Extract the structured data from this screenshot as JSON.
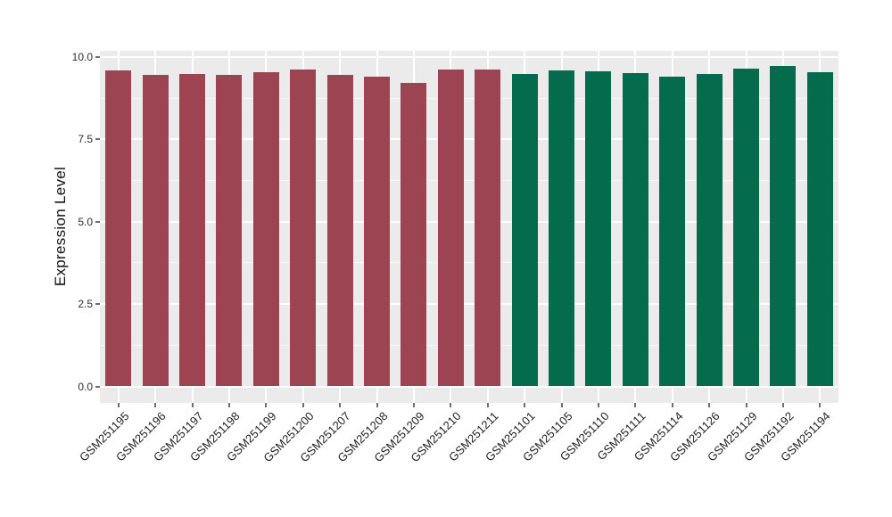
{
  "figure": {
    "background": "#ffffff",
    "panel_background": "#EBEBEB",
    "grid_major_color": "#FFFFFF",
    "grid_minor_color": "#FFFFFF",
    "tick_color": "#6f6f6f",
    "axis_text_color": "#2e2e2e",
    "axis_title_color": "#111111"
  },
  "chart_data": {
    "type": "bar",
    "title": "",
    "xlabel": "",
    "ylabel": "Expression Level",
    "ylim": [
      -0.49,
      10.2
    ],
    "yticks": [
      0.0,
      2.5,
      5.0,
      7.5,
      10.0
    ],
    "ytick_labels": [
      "0.0",
      "2.5",
      "5.0",
      "7.5",
      "10.0"
    ],
    "minor_yticks": [
      1.25,
      3.75,
      6.25,
      8.75
    ],
    "grid": "major+minor, white on gray panel",
    "legend_position": "none",
    "x_label_rotation_deg": 45,
    "categories": [
      "GSM251195",
      "GSM251196",
      "GSM251197",
      "GSM251198",
      "GSM251199",
      "GSM251200",
      "GSM251207",
      "GSM251208",
      "GSM251209",
      "GSM251210",
      "GSM251211",
      "GSM251101",
      "GSM251105",
      "GSM251110",
      "GSM251111",
      "GSM251114",
      "GSM251126",
      "GSM251129",
      "GSM251192",
      "GSM251194"
    ],
    "values": [
      9.6,
      9.45,
      9.48,
      9.47,
      9.53,
      9.63,
      9.47,
      9.4,
      9.22,
      9.61,
      9.63,
      9.48,
      9.6,
      9.57,
      9.52,
      9.4,
      9.49,
      9.66,
      9.72,
      9.53
    ],
    "groups": [
      "group1",
      "group1",
      "group1",
      "group1",
      "group1",
      "group1",
      "group1",
      "group1",
      "group1",
      "group1",
      "group1",
      "group2",
      "group2",
      "group2",
      "group2",
      "group2",
      "group2",
      "group2",
      "group2",
      "group2"
    ],
    "group_colors": {
      "group1": "#9C4452",
      "group2": "#046B4C"
    }
  }
}
